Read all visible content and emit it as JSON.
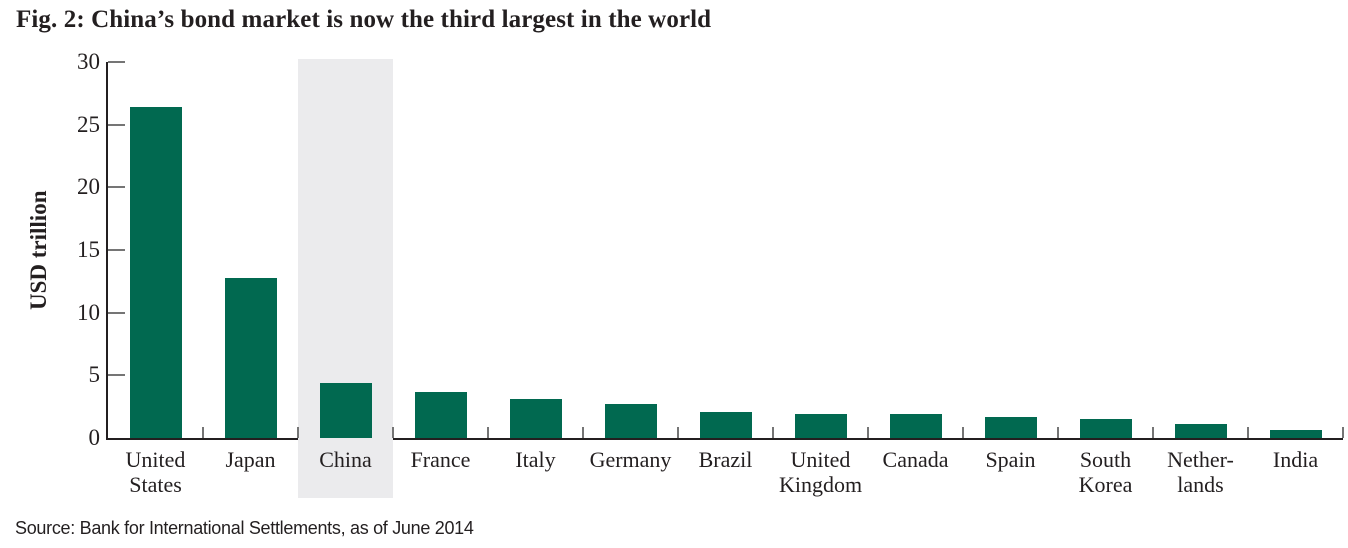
{
  "chart_data": {
    "type": "bar",
    "title": "Fig. 2: China’s bond market is now the third largest in the world",
    "ylabel": "USD trillion",
    "xlabel": "",
    "ylim": [
      0,
      30
    ],
    "yticks": [
      0,
      5,
      10,
      15,
      20,
      25,
      30
    ],
    "grid": false,
    "legend": null,
    "categories": [
      "United States",
      "Japan",
      "China",
      "France",
      "Italy",
      "Germany",
      "Brazil",
      "United Kingdom",
      "Canada",
      "Spain",
      "South Korea",
      "Netherlands",
      "India"
    ],
    "category_label_lines": [
      [
        "United",
        "States"
      ],
      [
        "Japan"
      ],
      [
        "China"
      ],
      [
        "France"
      ],
      [
        "Italy"
      ],
      [
        "Germany"
      ],
      [
        "Brazil"
      ],
      [
        "United",
        "Kingdom"
      ],
      [
        "Canada"
      ],
      [
        "Spain"
      ],
      [
        "South",
        "Korea"
      ],
      [
        "Nether-",
        "lands"
      ],
      [
        "India"
      ]
    ],
    "values": [
      26.4,
      12.8,
      4.35,
      3.65,
      3.15,
      2.7,
      2.1,
      1.95,
      1.9,
      1.65,
      1.5,
      1.15,
      0.65
    ],
    "highlighted_category": "China",
    "highlight_index": 2,
    "colors": {
      "bar": "#016950",
      "highlight_band": "#ebebed",
      "axis": "#231f20",
      "tick": "#757575",
      "text": "#231f20"
    },
    "source": "Source: Bank for International Settlements, as of June 2014"
  }
}
